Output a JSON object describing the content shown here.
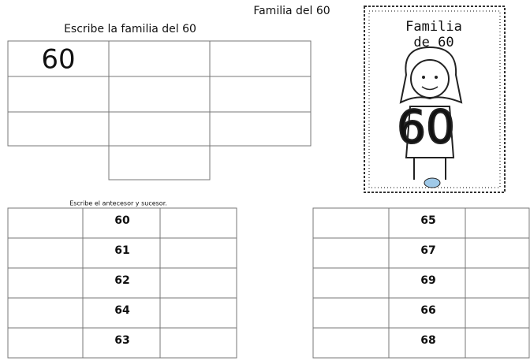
{
  "header": {
    "title": "Familia del 60"
  },
  "family": {
    "instruction": "Escribe la familia del 60",
    "given": 60
  },
  "cover": {
    "lines": [
      "Familia",
      "de 60"
    ],
    "numeral": 60
  },
  "sequence": {
    "instruction": "Escribe el antecesor y sucesor.",
    "left": [
      60,
      61,
      62,
      64,
      63
    ],
    "right": [
      65,
      67,
      69,
      66,
      68
    ]
  }
}
